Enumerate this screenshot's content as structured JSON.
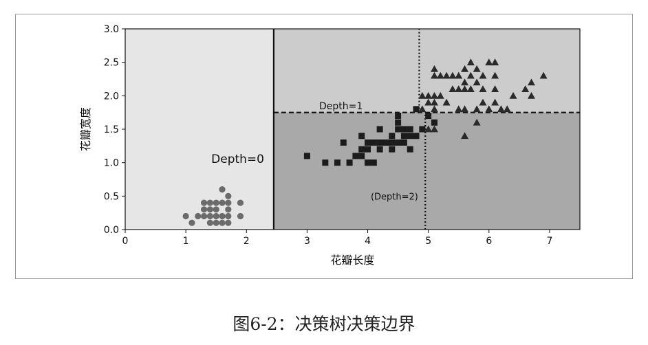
{
  "chart_data": {
    "type": "scatter",
    "title": "",
    "xlabel": "花瓣长度",
    "ylabel": "花瓣宽度",
    "xlim": [
      0,
      7.5
    ],
    "ylim": [
      0,
      3.0
    ],
    "xticks": [
      "0",
      "1",
      "2",
      "3",
      "4",
      "5",
      "6",
      "7"
    ],
    "yticks": [
      "0.0",
      "0.5",
      "1.0",
      "1.5",
      "2.0",
      "2.5",
      "3.0"
    ],
    "grid": false,
    "colors": {
      "region_left": "#e6e6e6",
      "region_top_right": "#cccccc",
      "region_bottom_right": "#a9a9a9",
      "circle": "#6b6b6b",
      "square": "#1c1c1c",
      "triangle": "#2a2a2a"
    },
    "regions": [
      {
        "xmin": 0,
        "xmax": 2.45,
        "ymin": 0,
        "ymax": 3.0,
        "shade": "region_left"
      },
      {
        "xmin": 2.45,
        "xmax": 7.5,
        "ymin": 1.75,
        "ymax": 3.0,
        "shade": "region_top_right"
      },
      {
        "xmin": 2.45,
        "xmax": 7.5,
        "ymin": 0,
        "ymax": 1.75,
        "shade": "region_bottom_right"
      }
    ],
    "boundaries": [
      {
        "label": "Depth=0",
        "style": "solid",
        "x": [
          2.45,
          2.45
        ],
        "y": [
          0,
          3.0
        ],
        "label_x": 1.42,
        "label_y": 1.05
      },
      {
        "label": "Depth=1",
        "style": "dashed",
        "x": [
          2.45,
          7.5
        ],
        "y": [
          1.75,
          1.75
        ],
        "label_x": 3.2,
        "label_y": 1.85
      },
      {
        "label": "(Depth=2)",
        "style": "dotted",
        "x": [
          4.95,
          4.95
        ],
        "y": [
          0,
          1.75
        ],
        "label_x": 4.05,
        "label_y": 0.5
      },
      {
        "label": "",
        "style": "dotted",
        "x": [
          4.85,
          4.85
        ],
        "y": [
          1.75,
          3.0
        ],
        "label_x": null,
        "label_y": null
      }
    ],
    "series": [
      {
        "marker": "circle",
        "points": [
          [
            1.0,
            0.2
          ],
          [
            1.1,
            0.1
          ],
          [
            1.2,
            0.2
          ],
          [
            1.3,
            0.2
          ],
          [
            1.3,
            0.3
          ],
          [
            1.3,
            0.4
          ],
          [
            1.4,
            0.1
          ],
          [
            1.4,
            0.2
          ],
          [
            1.4,
            0.3
          ],
          [
            1.5,
            0.1
          ],
          [
            1.5,
            0.2
          ],
          [
            1.5,
            0.3
          ],
          [
            1.5,
            0.4
          ],
          [
            1.6,
            0.2
          ],
          [
            1.6,
            0.4
          ],
          [
            1.6,
            0.6
          ],
          [
            1.7,
            0.2
          ],
          [
            1.7,
            0.3
          ],
          [
            1.7,
            0.4
          ],
          [
            1.7,
            0.5
          ],
          [
            1.9,
            0.2
          ],
          [
            1.9,
            0.4
          ],
          [
            1.6,
            0.1
          ],
          [
            1.4,
            0.4
          ],
          [
            1.7,
            0.1
          ]
        ]
      },
      {
        "marker": "square",
        "points": [
          [
            3.0,
            1.1
          ],
          [
            3.3,
            1.0
          ],
          [
            3.5,
            1.0
          ],
          [
            3.6,
            1.3
          ],
          [
            3.7,
            1.0
          ],
          [
            3.8,
            1.1
          ],
          [
            3.9,
            1.1
          ],
          [
            3.9,
            1.2
          ],
          [
            3.9,
            1.4
          ],
          [
            4.0,
            1.0
          ],
          [
            4.0,
            1.2
          ],
          [
            4.0,
            1.3
          ],
          [
            4.1,
            1.0
          ],
          [
            4.1,
            1.3
          ],
          [
            4.2,
            1.2
          ],
          [
            4.2,
            1.3
          ],
          [
            4.2,
            1.5
          ],
          [
            4.3,
            1.3
          ],
          [
            4.4,
            1.2
          ],
          [
            4.4,
            1.3
          ],
          [
            4.4,
            1.4
          ],
          [
            4.5,
            1.3
          ],
          [
            4.5,
            1.5
          ],
          [
            4.5,
            1.6
          ],
          [
            4.5,
            1.7
          ],
          [
            4.6,
            1.3
          ],
          [
            4.6,
            1.4
          ],
          [
            4.6,
            1.5
          ],
          [
            4.7,
            1.2
          ],
          [
            4.7,
            1.4
          ],
          [
            4.7,
            1.5
          ],
          [
            4.8,
            1.4
          ],
          [
            4.8,
            1.8
          ],
          [
            4.9,
            1.5
          ],
          [
            5.0,
            1.7
          ],
          [
            5.1,
            1.6
          ]
        ]
      },
      {
        "marker": "triangle",
        "points": [
          [
            4.9,
            2.0
          ],
          [
            4.9,
            1.8
          ],
          [
            5.0,
            1.5
          ],
          [
            5.0,
            2.0
          ],
          [
            5.0,
            1.9
          ],
          [
            5.1,
            1.5
          ],
          [
            5.1,
            1.8
          ],
          [
            5.1,
            1.9
          ],
          [
            5.1,
            2.0
          ],
          [
            5.1,
            2.3
          ],
          [
            5.1,
            2.4
          ],
          [
            5.2,
            2.0
          ],
          [
            5.2,
            2.3
          ],
          [
            5.3,
            1.9
          ],
          [
            5.3,
            2.3
          ],
          [
            5.4,
            2.1
          ],
          [
            5.4,
            2.3
          ],
          [
            5.5,
            1.8
          ],
          [
            5.5,
            2.1
          ],
          [
            5.5,
            2.3
          ],
          [
            5.6,
            1.4
          ],
          [
            5.6,
            1.8
          ],
          [
            5.6,
            2.1
          ],
          [
            5.6,
            2.2
          ],
          [
            5.6,
            2.4
          ],
          [
            5.7,
            2.1
          ],
          [
            5.7,
            2.3
          ],
          [
            5.7,
            2.5
          ],
          [
            5.8,
            1.8
          ],
          [
            5.8,
            2.2
          ],
          [
            5.8,
            2.4
          ],
          [
            5.9,
            2.1
          ],
          [
            5.9,
            2.3
          ],
          [
            6.0,
            1.8
          ],
          [
            6.0,
            2.5
          ],
          [
            6.1,
            1.9
          ],
          [
            6.1,
            2.3
          ],
          [
            6.1,
            2.5
          ],
          [
            6.3,
            1.8
          ],
          [
            6.4,
            2.0
          ],
          [
            6.6,
            2.1
          ],
          [
            6.7,
            2.0
          ],
          [
            6.7,
            2.2
          ],
          [
            6.9,
            2.3
          ],
          [
            5.8,
            1.6
          ],
          [
            6.1,
            2.1
          ],
          [
            6.2,
            1.8
          ],
          [
            5.9,
            1.9
          ]
        ]
      }
    ]
  },
  "figure": {
    "caption": "图6-2：决策树决策边界"
  }
}
